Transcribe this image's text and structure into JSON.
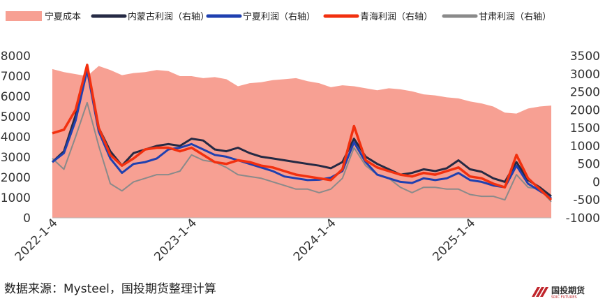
{
  "chart_data": {
    "type": "area+line",
    "legend": [
      {
        "name": "宁夏成本",
        "color": "#f7a093",
        "kind": "area"
      },
      {
        "name": "内蒙古利润（右轴）",
        "color": "#252a44",
        "kind": "line"
      },
      {
        "name": "宁夏利润（右轴）",
        "color": "#1f40b0",
        "kind": "line"
      },
      {
        "name": "青海利润（右轴）",
        "color": "#f2300f",
        "kind": "line"
      },
      {
        "name": "甘肃利润（右轴）",
        "color": "#8a8a8a",
        "kind": "line"
      }
    ],
    "left_axis": {
      "min": 0,
      "max": 8000,
      "ticks": [
        "0",
        "1000",
        "2000",
        "3000",
        "4000",
        "5000",
        "6000",
        "7000",
        "8000"
      ]
    },
    "right_axis": {
      "min": -1000,
      "max": 3500,
      "ticks": [
        "-1000",
        "-500",
        "0",
        "500",
        "1000",
        "1500",
        "2000",
        "2500",
        "3000",
        "3500"
      ]
    },
    "x_ticks": [
      "2022-1-4",
      "2023-1-4",
      "2024-1-4",
      "2025-1-4"
    ],
    "x_range": [
      0,
      43
    ],
    "x_tick_positions": [
      0,
      12,
      24,
      36
    ],
    "series": [
      {
        "name": "宁夏成本",
        "axis": "left",
        "x": [
          0,
          1,
          2,
          3,
          4,
          5,
          6,
          7,
          8,
          9,
          10,
          11,
          12,
          13,
          14,
          15,
          16,
          17,
          18,
          19,
          20,
          21,
          22,
          23,
          24,
          25,
          26,
          27,
          28,
          29,
          30,
          31,
          32,
          33,
          34,
          35,
          36,
          37,
          38,
          39,
          40,
          41,
          42,
          43
        ],
        "values": [
          7350,
          7200,
          7100,
          7000,
          7500,
          7300,
          7050,
          7150,
          7200,
          7300,
          7250,
          7000,
          7000,
          6900,
          6950,
          6850,
          6500,
          6650,
          6700,
          6800,
          6850,
          6900,
          6750,
          6650,
          6450,
          6550,
          6500,
          6400,
          6300,
          6400,
          6350,
          6250,
          6100,
          6050,
          5950,
          5900,
          5750,
          5650,
          5500,
          5200,
          5150,
          5400,
          5500,
          5550
        ]
      },
      {
        "name": "内蒙古利润（右轴）",
        "axis": "right",
        "x": [
          0,
          1,
          2,
          3,
          4,
          5,
          6,
          7,
          8,
          9,
          10,
          11,
          12,
          13,
          14,
          15,
          16,
          17,
          18,
          19,
          20,
          21,
          22,
          23,
          24,
          25,
          26,
          27,
          28,
          29,
          30,
          31,
          32,
          33,
          34,
          35,
          36,
          37,
          38,
          39,
          40,
          41,
          42,
          43
        ],
        "values": [
          550,
          850,
          1850,
          3200,
          1500,
          850,
          450,
          800,
          900,
          1000,
          1050,
          1000,
          1200,
          1150,
          900,
          850,
          950,
          800,
          700,
          650,
          600,
          550,
          500,
          450,
          380,
          550,
          1200,
          700,
          500,
          350,
          200,
          250,
          350,
          300,
          380,
          600,
          350,
          280,
          100,
          0,
          550,
          50,
          -150,
          -400
        ]
      },
      {
        "name": "宁夏利润（右轴）",
        "axis": "right",
        "x": [
          0,
          1,
          2,
          3,
          4,
          5,
          6,
          7,
          8,
          9,
          10,
          11,
          12,
          13,
          14,
          15,
          16,
          17,
          18,
          19,
          20,
          21,
          22,
          23,
          24,
          25,
          26,
          27,
          28,
          29,
          30,
          31,
          32,
          33,
          34,
          35,
          36,
          37,
          38,
          39,
          40,
          41,
          42,
          43
        ],
        "values": [
          550,
          800,
          1700,
          3100,
          1400,
          650,
          250,
          500,
          550,
          650,
          900,
          950,
          1050,
          900,
          750,
          700,
          600,
          500,
          400,
          300,
          150,
          100,
          50,
          60,
          120,
          300,
          1100,
          550,
          200,
          100,
          0,
          -30,
          100,
          50,
          100,
          250,
          50,
          0,
          -100,
          -150,
          450,
          -50,
          -250,
          -450
        ]
      },
      {
        "name": "青海利润（右轴）",
        "axis": "right",
        "x": [
          0,
          1,
          2,
          3,
          4,
          5,
          6,
          7,
          8,
          9,
          10,
          11,
          12,
          13,
          14,
          15,
          16,
          17,
          18,
          19,
          20,
          21,
          22,
          23,
          24,
          25,
          26,
          27,
          28,
          29,
          30,
          31,
          32,
          33,
          34,
          35,
          36,
          37,
          38,
          39,
          40,
          41,
          42,
          43
        ],
        "values": [
          1350,
          1450,
          2000,
          3250,
          1500,
          750,
          450,
          650,
          900,
          950,
          950,
          850,
          950,
          750,
          550,
          500,
          600,
          550,
          450,
          400,
          300,
          200,
          150,
          100,
          50,
          350,
          1550,
          600,
          400,
          300,
          200,
          150,
          250,
          200,
          300,
          400,
          150,
          100,
          -50,
          -150,
          750,
          100,
          -200,
          -500
        ]
      },
      {
        "name": "甘肃利润（右轴）",
        "axis": "right",
        "x": [
          0,
          1,
          2,
          3,
          4,
          5,
          6,
          7,
          8,
          9,
          10,
          11,
          12,
          13,
          14,
          15,
          16,
          17,
          18,
          19,
          20,
          21,
          22,
          23,
          24,
          25,
          26,
          27,
          28,
          29,
          30,
          31,
          32,
          33,
          34,
          35,
          36,
          37,
          38,
          39,
          40,
          41,
          42,
          43
        ],
        "values": [
          650,
          350,
          1250,
          2200,
          1000,
          -50,
          -250,
          0,
          100,
          200,
          200,
          300,
          750,
          600,
          550,
          400,
          200,
          150,
          100,
          0,
          -100,
          -200,
          -200,
          -300,
          -200,
          100,
          950,
          450,
          200,
          100,
          -150,
          -300,
          -150,
          -150,
          -200,
          -200,
          -350,
          -400,
          -400,
          -500,
          200,
          -150,
          -200,
          -550
        ]
      }
    ]
  },
  "source_text": "数据来源：Mysteel，国投期货整理计算",
  "logo": {
    "title": "国投期货",
    "subtitle": "SDIC FUTURES"
  }
}
